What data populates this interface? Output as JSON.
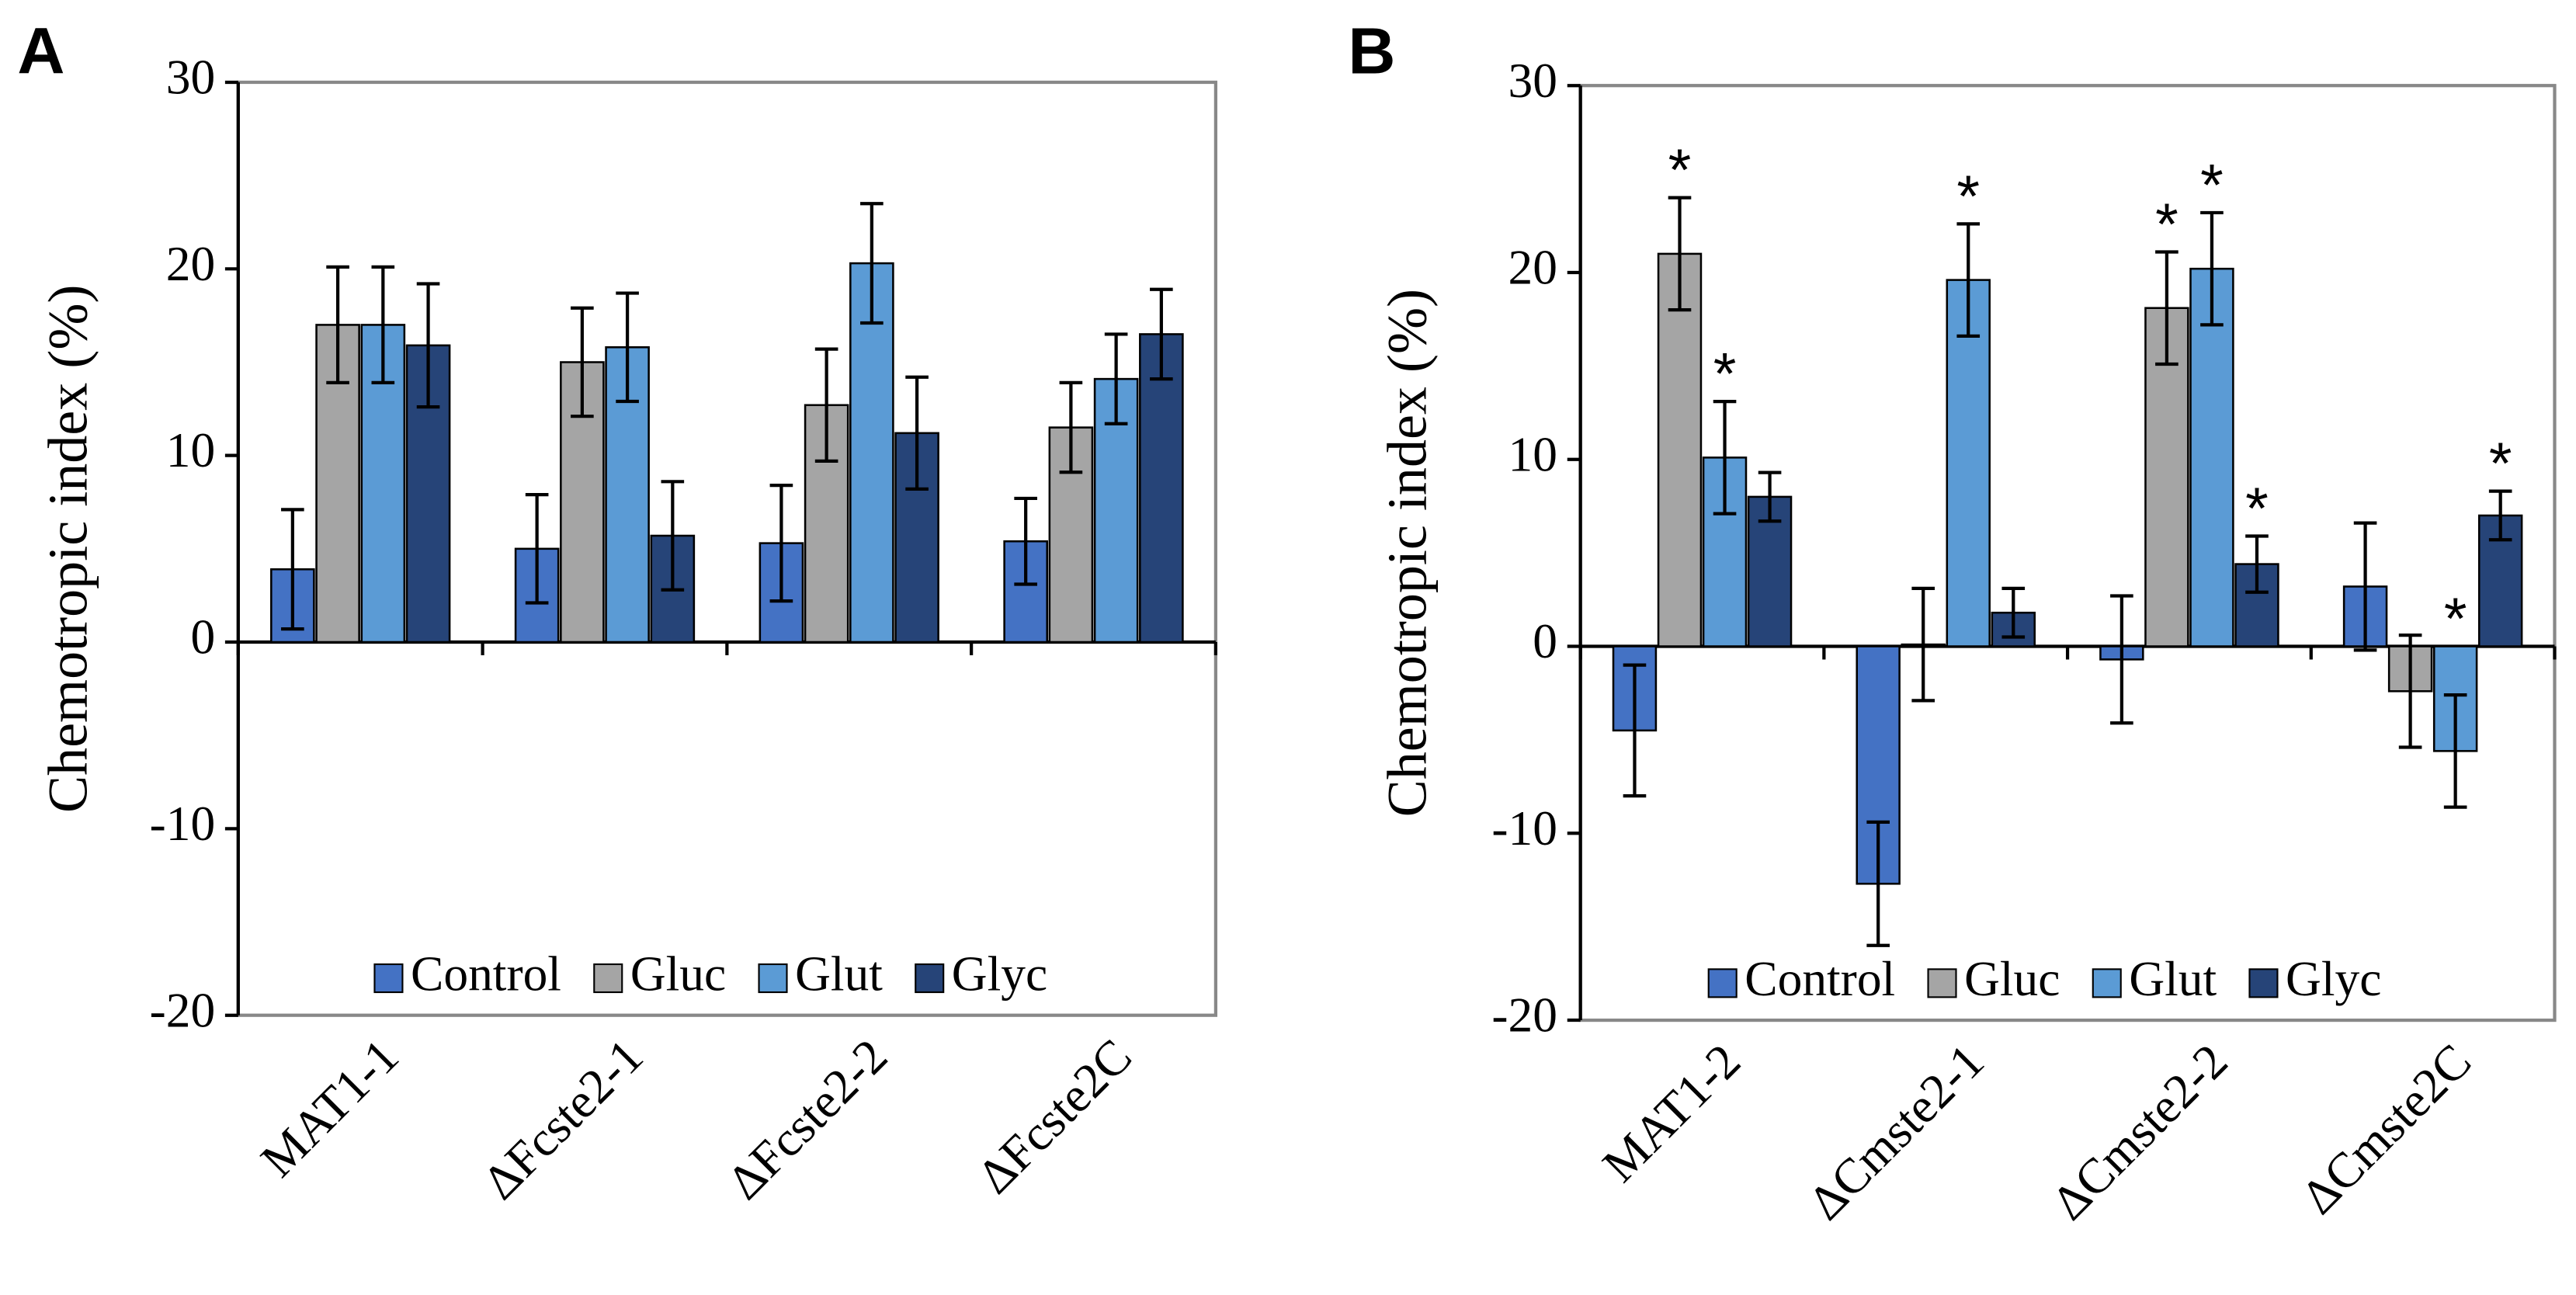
{
  "chart_data": [
    {
      "type": "bar",
      "panel": "A",
      "y_label": "Chemotropic index (%)",
      "categories": [
        "MAT1-1",
        "ΔFcste2-1",
        "ΔFcste2-2",
        "ΔFcste2C"
      ],
      "series": [
        {
          "name": "Control",
          "color": "#4472c4",
          "values": [
            3.9,
            5.0,
            5.3,
            5.4
          ],
          "errors": [
            3.2,
            2.9,
            3.1,
            2.3
          ]
        },
        {
          "name": "Gluc",
          "color": "#a5a5a5",
          "values": [
            17.0,
            15.0,
            12.7,
            11.5
          ],
          "errors": [
            3.1,
            2.9,
            3.0,
            2.4
          ]
        },
        {
          "name": "Glut",
          "color": "#5b9bd5",
          "values": [
            17.0,
            15.8,
            20.3,
            14.1
          ],
          "errors": [
            3.1,
            2.9,
            3.2,
            2.4
          ]
        },
        {
          "name": "Glyc",
          "color": "#264478",
          "values": [
            15.9,
            5.7,
            11.2,
            16.5
          ],
          "errors": [
            3.3,
            2.9,
            3.0,
            2.4
          ]
        }
      ],
      "ylim": [
        -20,
        30
      ],
      "yticks": [
        -20,
        -10,
        0,
        10,
        20,
        30
      ],
      "legend": "bottom"
    },
    {
      "type": "bar",
      "panel": "B",
      "y_label": "Chemotropic index (%)",
      "categories": [
        "MAT1-2",
        "ΔCmste2-1",
        "ΔCmste2-2",
        "ΔCmste2C"
      ],
      "series": [
        {
          "name": "Control",
          "color": "#4472c4",
          "values": [
            -4.5,
            -12.7,
            -0.7,
            3.2
          ],
          "errors": [
            3.5,
            3.3,
            3.4,
            3.4
          ],
          "significance": [
            null,
            null,
            null,
            null
          ]
        },
        {
          "name": "Gluc",
          "color": "#a5a5a5",
          "values": [
            21.0,
            0.1,
            18.1,
            -2.4
          ],
          "errors": [
            3.0,
            3.0,
            3.0,
            3.0
          ],
          "significance": [
            "*",
            null,
            "*",
            null
          ]
        },
        {
          "name": "Glut",
          "color": "#5b9bd5",
          "values": [
            10.1,
            19.6,
            20.2,
            -5.6
          ],
          "errors": [
            3.0,
            3.0,
            3.0,
            3.0
          ],
          "significance": [
            "*",
            "*",
            "*",
            "*"
          ]
        },
        {
          "name": "Glyc",
          "color": "#264478",
          "values": [
            8.0,
            1.8,
            4.4,
            7.0
          ],
          "errors": [
            1.3,
            1.3,
            1.5,
            1.3
          ],
          "significance": [
            null,
            null,
            "*",
            "*"
          ]
        }
      ],
      "ylim": [
        -20,
        30
      ],
      "yticks": [
        -20,
        -10,
        0,
        10,
        20,
        30
      ],
      "legend": "bottom"
    }
  ]
}
